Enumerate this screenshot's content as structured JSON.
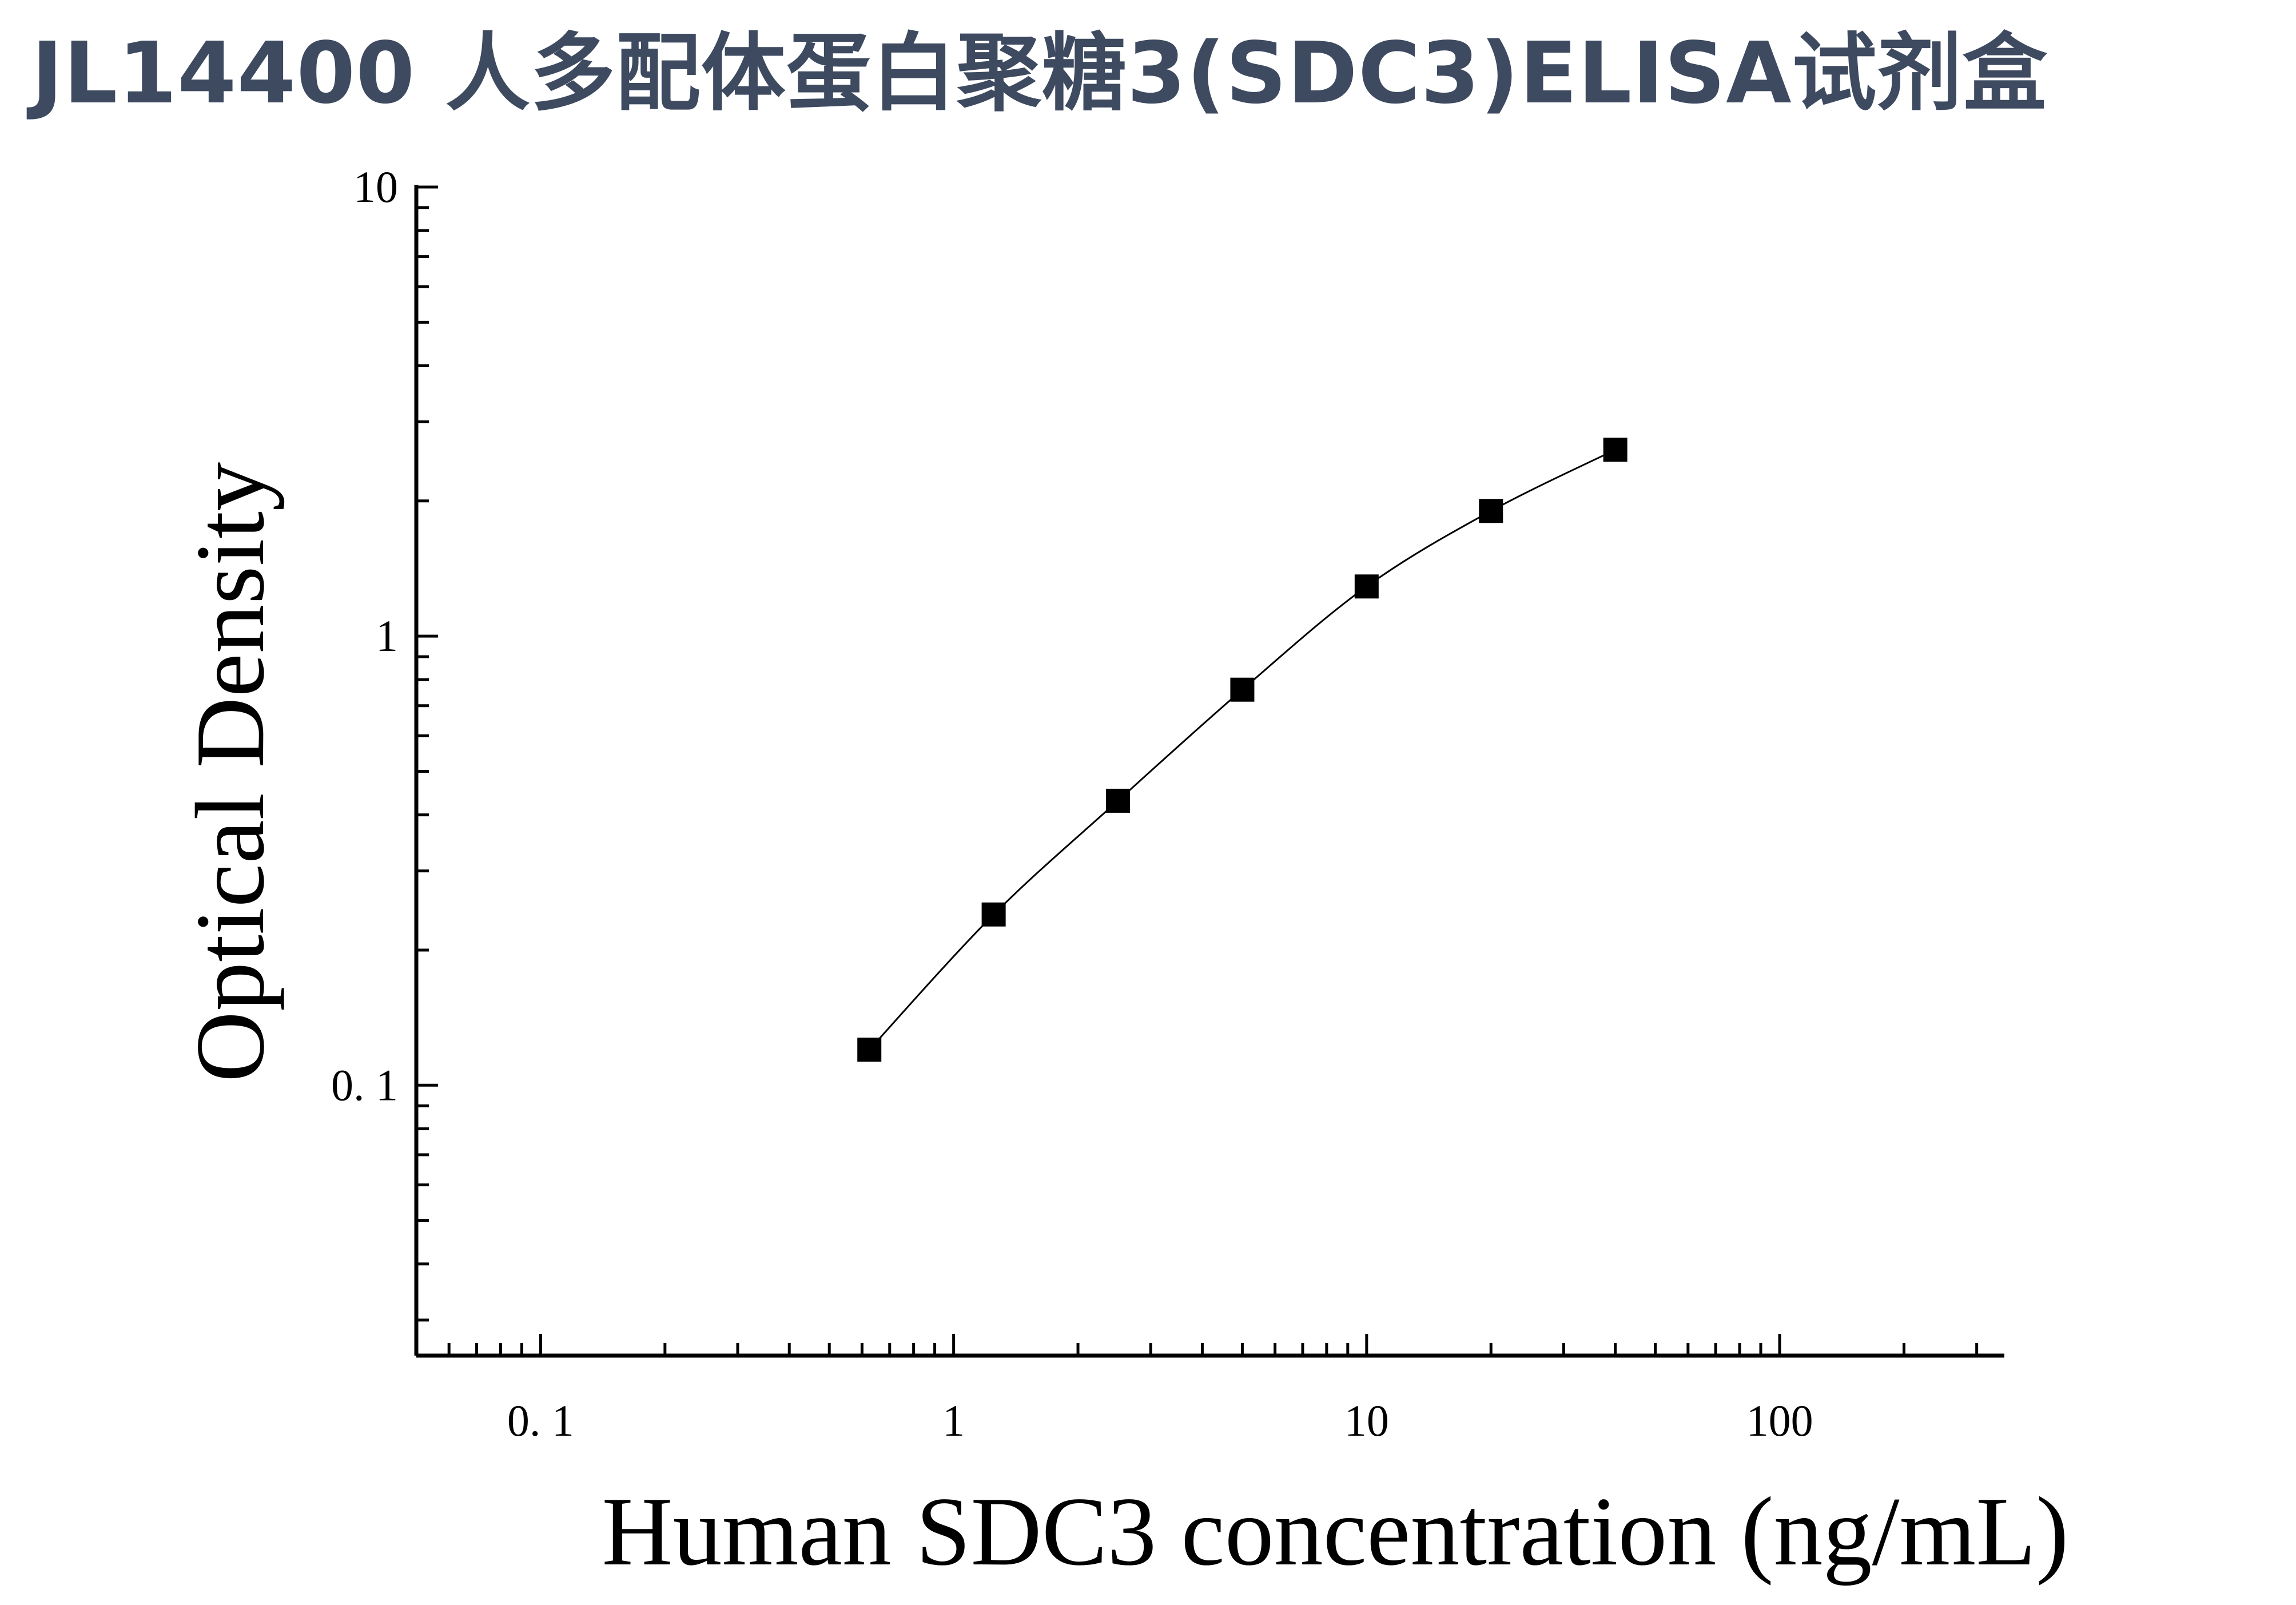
{
  "title": "JL14400 人多配体蛋白聚糖3(SDC3)ELISA试剂盒",
  "chart_data": {
    "type": "scatter",
    "xlabel": "Human SDC3 concentration (ng/mL)",
    "ylabel": "Optical Density",
    "xscale": "log",
    "yscale": "log",
    "xlim": [
      0.05,
      350
    ],
    "ylim": [
      0.025,
      10
    ],
    "x_ticks": [
      {
        "value": 0.1,
        "label": "0. 1"
      },
      {
        "value": 1,
        "label": "1"
      },
      {
        "value": 10,
        "label": "10"
      },
      {
        "value": 100,
        "label": "100"
      }
    ],
    "y_ticks": [
      {
        "value": 0.1,
        "label": "0. 1"
      },
      {
        "value": 1,
        "label": "1"
      },
      {
        "value": 10,
        "label": "10"
      }
    ],
    "grid": false,
    "legend": "none",
    "fit_curve": true,
    "marker": "square",
    "marker_color": "#000000",
    "series": [
      {
        "x": [
          0.625,
          1.25,
          2.5,
          5,
          10,
          20,
          40
        ],
        "y": [
          0.12,
          0.24,
          0.43,
          0.76,
          1.29,
          1.9,
          2.6
        ]
      }
    ]
  }
}
